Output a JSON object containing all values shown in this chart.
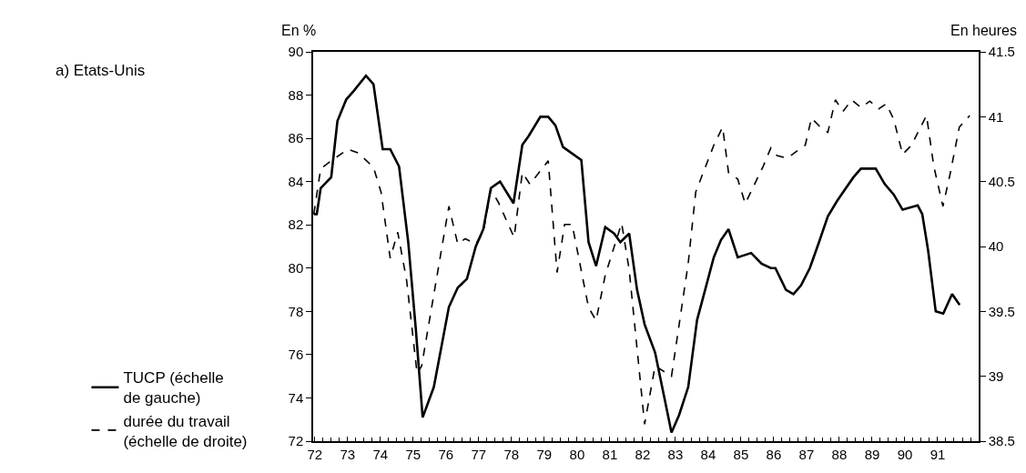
{
  "chart_data": {
    "type": "line",
    "title": "a) Etats-Unis",
    "ylabel": "En %",
    "y2label": "En heures",
    "xlim": [
      71.95,
      92.25
    ],
    "xticks": [
      {
        "value": 72,
        "label": "72"
      },
      {
        "value": 73,
        "label": "73"
      },
      {
        "value": 74,
        "label": "74"
      },
      {
        "value": 75,
        "label": "75"
      },
      {
        "value": 76,
        "label": "76"
      },
      {
        "value": 77,
        "label": "77"
      },
      {
        "value": 78,
        "label": "78"
      },
      {
        "value": 79,
        "label": "79"
      },
      {
        "value": 80,
        "label": "80"
      },
      {
        "value": 81,
        "label": "81"
      },
      {
        "value": 82,
        "label": "82"
      },
      {
        "value": 83,
        "label": "83"
      },
      {
        "value": 84,
        "label": "84"
      },
      {
        "value": 85,
        "label": "85"
      },
      {
        "value": 86,
        "label": "86"
      },
      {
        "value": 87,
        "label": "87"
      },
      {
        "value": 88,
        "label": "88"
      },
      {
        "value": 89,
        "label": "89"
      },
      {
        "value": 90,
        "label": "90"
      },
      {
        "value": 91,
        "label": "91"
      }
    ],
    "ylim": [
      72,
      90
    ],
    "yticks": [
      72,
      74,
      76,
      78,
      80,
      82,
      84,
      86,
      88,
      90
    ],
    "y2lim": [
      38.5,
      41.5
    ],
    "y2ticks": [
      38.5,
      39,
      39.5,
      40,
      40.5,
      41,
      41.5
    ],
    "legend": "bottom left",
    "series": [
      {
        "name": "TUCP (échelle\nde gauche)",
        "color": "#000000",
        "line_style": "solid",
        "axis": "y",
        "x": [
          71.97,
          72.06,
          72.18,
          72.5,
          72.69,
          72.96,
          73.19,
          73.56,
          73.79,
          74.07,
          74.3,
          74.57,
          74.85,
          75.08,
          75.29,
          75.63,
          76.09,
          76.36,
          76.64,
          76.91,
          77.14,
          77.37,
          77.65,
          78.06,
          78.33,
          78.52,
          78.88,
          79.12,
          79.34,
          79.57,
          80.13,
          80.35,
          80.58,
          80.86,
          81.13,
          81.32,
          81.59,
          81.83,
          82.06,
          82.38,
          82.65,
          82.88,
          83.11,
          83.39,
          83.66,
          83.89,
          84.17,
          84.39,
          84.62,
          84.9,
          85.31,
          85.63,
          85.91,
          86.05,
          86.37,
          86.6,
          86.83,
          87.1,
          87.38,
          87.65,
          87.93,
          88.11,
          88.43,
          88.66,
          89.11,
          89.38,
          89.66,
          89.93,
          90.39,
          90.53,
          90.71,
          90.94,
          91.17,
          91.44,
          91.67
        ],
        "values": [
          82.5,
          82.5,
          83.7,
          84.2,
          86.8,
          87.8,
          88.2,
          88.9,
          88.5,
          85.5,
          85.5,
          84.7,
          81.2,
          77.2,
          73.1,
          74.5,
          78.2,
          79.1,
          79.5,
          81.0,
          81.8,
          83.7,
          84.0,
          83.0,
          85.7,
          86.1,
          87.0,
          87.0,
          86.6,
          85.6,
          85.0,
          81.2,
          80.1,
          81.9,
          81.6,
          81.2,
          81.6,
          79.0,
          77.4,
          76.1,
          74.1,
          72.4,
          73.2,
          74.5,
          77.6,
          78.9,
          80.5,
          81.3,
          81.8,
          80.5,
          80.7,
          80.2,
          80.0,
          80.0,
          79.0,
          78.8,
          79.2,
          80.0,
          81.2,
          82.4,
          83.1,
          83.5,
          84.2,
          84.6,
          84.6,
          83.9,
          83.4,
          82.7,
          82.9,
          82.5,
          80.8,
          78.0,
          77.9,
          78.8,
          78.3
        ]
      },
      {
        "name": "durée du travail\n(échelle de droite)",
        "color": "#000000",
        "line_style": "dashed",
        "axis": "y2",
        "x": [
          71.97,
          72.18,
          72.5,
          73.01,
          73.33,
          73.79,
          74.02,
          74.3,
          74.53,
          74.8,
          75.12,
          75.26,
          75.63,
          76.09,
          76.36,
          76.59,
          76.91,
          77.14,
          77.37,
          77.6,
          78.08,
          78.33,
          78.56,
          79.12,
          79.39,
          79.62,
          79.85,
          80.35,
          80.58,
          80.86,
          81.36,
          81.59,
          82.06,
          82.38,
          82.88,
          83.39,
          83.62,
          84.17,
          84.44,
          84.62,
          84.9,
          85.13,
          85.68,
          85.91,
          86.1,
          86.41,
          86.73,
          86.96,
          87.15,
          87.42,
          87.65,
          87.88,
          88.11,
          88.38,
          88.66,
          88.93,
          89.2,
          89.43,
          89.66,
          89.93,
          90.2,
          90.66,
          90.88,
          91.16,
          91.38,
          91.66,
          91.98
        ],
        "values": [
          40.25,
          40.6,
          40.66,
          40.75,
          40.72,
          40.61,
          40.42,
          39.91,
          40.11,
          39.74,
          39.02,
          39.08,
          39.63,
          40.31,
          40.02,
          40.06,
          40.02,
          40.11,
          40.44,
          40.34,
          40.07,
          40.57,
          40.48,
          40.66,
          39.8,
          40.17,
          40.17,
          39.53,
          39.43,
          39.78,
          40.18,
          39.82,
          38.63,
          39.08,
          39.0,
          39.87,
          40.42,
          40.78,
          40.92,
          40.57,
          40.52,
          40.33,
          40.62,
          40.76,
          40.7,
          40.68,
          40.74,
          40.78,
          40.99,
          40.92,
          40.88,
          41.13,
          41.04,
          41.13,
          41.07,
          41.12,
          41.06,
          41.1,
          40.98,
          40.71,
          40.78,
          41.01,
          40.62,
          40.31,
          40.56,
          40.92,
          41.01
        ]
      }
    ]
  }
}
